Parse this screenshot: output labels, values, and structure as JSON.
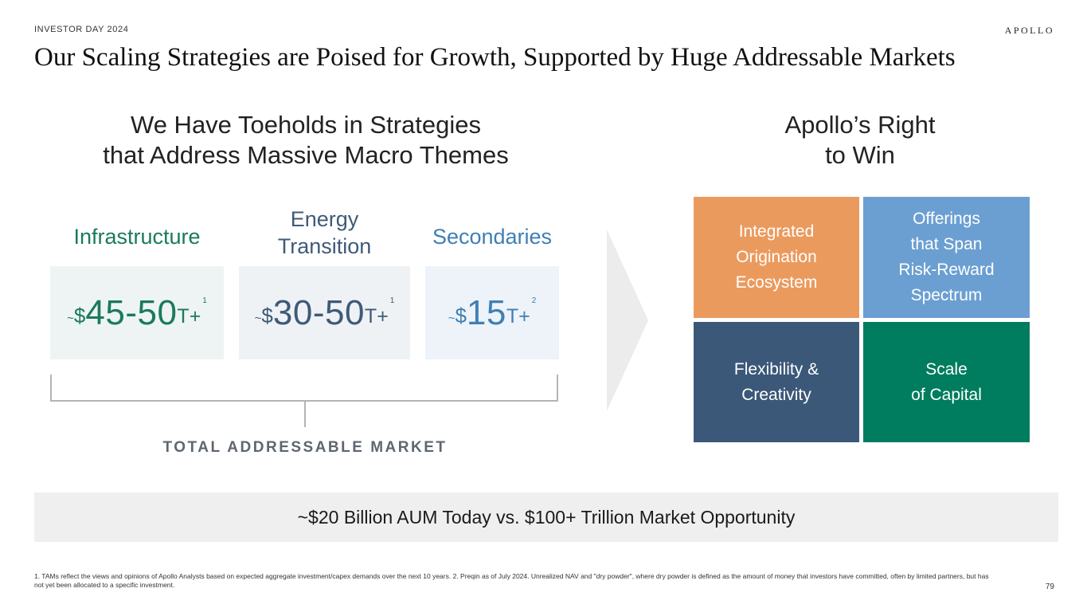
{
  "header": {
    "eyebrow": "INVESTOR DAY 2024",
    "logo": "APOLLO",
    "title": "Our Scaling Strategies are Poised for Growth, Supported by Huge Addressable Markets"
  },
  "left": {
    "heading_line1": "We Have Toeholds in Strategies",
    "heading_line2": "that Address Massive Macro Themes",
    "categories": [
      {
        "label_line1": "Infrastructure",
        "label_line2": "",
        "tilde": "~",
        "dollar": "$",
        "value": "45-50",
        "unit": "T+",
        "footnote_ref": "1",
        "color": "#1a7a5e"
      },
      {
        "label_line1": "Energy",
        "label_line2": "Transition",
        "tilde": "~",
        "dollar": "$",
        "value": "30-50",
        "unit": "T+",
        "footnote_ref": "1",
        "color": "#3f5a78"
      },
      {
        "label_line1": "Secondaries",
        "label_line2": "",
        "tilde": "~",
        "dollar": "$",
        "value": "15",
        "unit": "T+",
        "footnote_ref": "2",
        "color": "#3f7fb5"
      }
    ],
    "bracket_label": "TOTAL ADDRESSABLE MARKET"
  },
  "right": {
    "heading_line1": "Apollo’s Right",
    "heading_line2": "to Win",
    "tiles": [
      {
        "lines": [
          "Integrated",
          "Origination",
          "Ecosystem"
        ],
        "color": "#eb9a5e"
      },
      {
        "lines": [
          "Offerings",
          "that Span",
          "Risk-Reward",
          "Spectrum"
        ],
        "color": "#6b9fd1"
      },
      {
        "lines": [
          "Flexibility &",
          "Creativity"
        ],
        "color": "#3b5878"
      },
      {
        "lines": [
          "Scale",
          "of Capital"
        ],
        "color": "#007c5e"
      }
    ]
  },
  "banner": "~$20 Billion AUM Today vs. $100+ Trillion Market Opportunity",
  "footnote": "1. TAMs reflect the views and opinions of Apollo Analysts based on expected aggregate investment/capex demands over the next 10 years. 2. Preqin as of July 2024. Unrealized NAV and \"dry powder\", where dry powder is defined as the amount of money that investors have committed, often by limited partners, but has not yet been allocated to a specific investment.",
  "page_number": "79"
}
